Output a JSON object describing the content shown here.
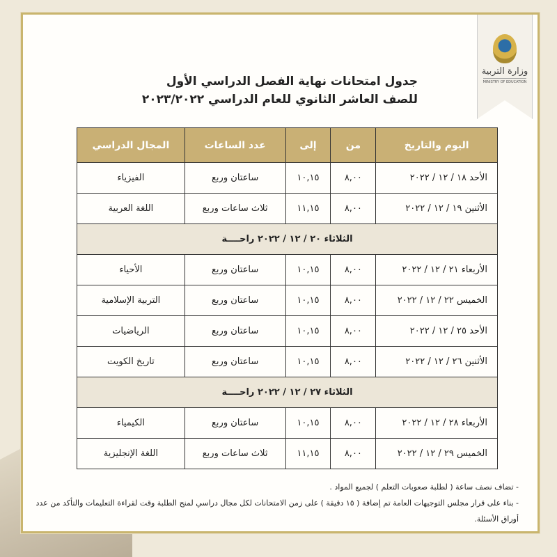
{
  "logo": {
    "arabic": "وزارة التربية",
    "english": "MINISTRY OF EDUCATION"
  },
  "title": {
    "line1": "جدول امتحانات نهاية الفصل الدراسي الأول",
    "line2": "للصف العاشر الثانوي للعام الدراسي ٢٠٢٣/٢٠٢٢"
  },
  "table": {
    "headers": [
      "اليوم والتاريخ",
      "من",
      "إلى",
      "عدد الساعات",
      "المجال الدراسي"
    ],
    "rows": [
      {
        "date": "الأحد ١٨ / ١٢ / ٢٠٢٢",
        "from": "٨,٠٠",
        "to": "١٠,١٥",
        "hours": "ساعتان وربع",
        "subject": "الفيزياء"
      },
      {
        "date": "الأثنين ١٩ / ١٢ / ٢٠٢٢",
        "from": "٨,٠٠",
        "to": "١١,١٥",
        "hours": "ثلاث ساعات وربع",
        "subject": "اللغة العربية"
      },
      {
        "rest": "الثلاثاء ٢٠ / ١٢ / ٢٠٢٢ راحــــة"
      },
      {
        "date": "الأربعاء ٢١ / ١٢ / ٢٠٢٢",
        "from": "٨,٠٠",
        "to": "١٠,١٥",
        "hours": "ساعتان وربع",
        "subject": "الأحياء"
      },
      {
        "date": "الخميس ٢٢ / ١٢ / ٢٠٢٢",
        "from": "٨,٠٠",
        "to": "١٠,١٥",
        "hours": "ساعتان وربع",
        "subject": "التربية الإسلامية"
      },
      {
        "date": "الأحد ٢٥ / ١٢ / ٢٠٢٢",
        "from": "٨,٠٠",
        "to": "١٠,١٥",
        "hours": "ساعتان وربع",
        "subject": "الرياضيات"
      },
      {
        "date": "الأثنين ٢٦ / ١٢ / ٢٠٢٢",
        "from": "٨,٠٠",
        "to": "١٠,١٥",
        "hours": "ساعتان وربع",
        "subject": "تاريخ الكويت"
      },
      {
        "rest": "الثلاثاء ٢٧ / ١٢ / ٢٠٢٢ راحــــة"
      },
      {
        "date": "الأربعاء ٢٨ / ١٢ / ٢٠٢٢",
        "from": "٨,٠٠",
        "to": "١٠,١٥",
        "hours": "ساعتان وربع",
        "subject": "الكيمياء"
      },
      {
        "date": "الخميس ٢٩ / ١٢ / ٢٠٢٢",
        "from": "٨,٠٠",
        "to": "١١,١٥",
        "hours": "ثلاث ساعات وربع",
        "subject": "اللغة الإنجليزية"
      }
    ]
  },
  "notes": [
    "- تضاف نصف ساعة ( لطلبة صعوبات التعلم ) لجميع المواد .",
    "- بناء على قرار مجلس التوجيهات العامة تم إضافة ( ١٥ دقيقة ) على زمن الامتحانات لكل مجال دراسي لمنح الطلبة وقت لقراءة التعليمات والتأكد من عدد أوراق الأسئلة."
  ],
  "colors": {
    "header": "#c9b075",
    "border": "#c9b56e",
    "rest_row": "#ece6d8"
  }
}
